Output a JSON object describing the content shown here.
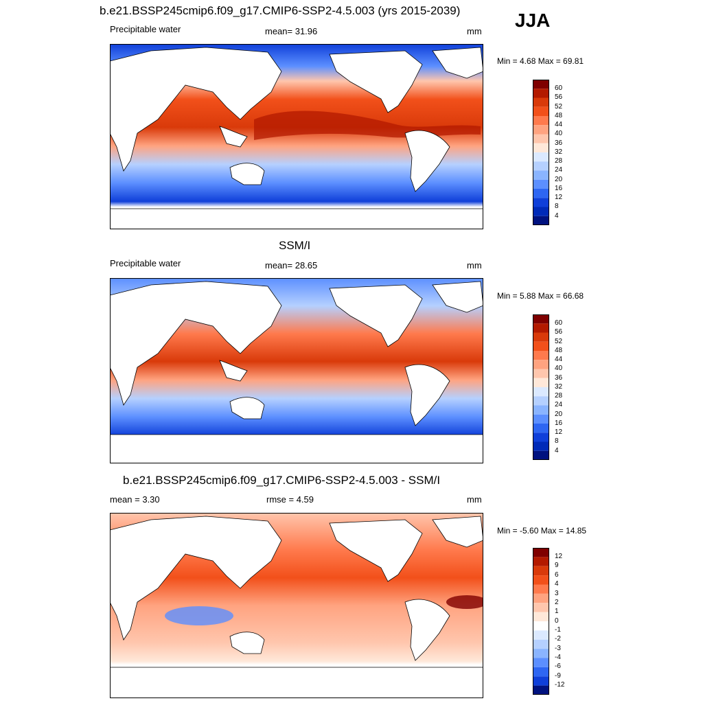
{
  "season": "JJA",
  "units": "mm",
  "panels": [
    {
      "title": "b.e21.BSSP245cmip6.f09_g17.CMIP6-SSP2-4.5.003 (yrs 2015-2039)",
      "left_label": "Precipitable water",
      "center_label": "mean=  31.96",
      "right_label": "mm",
      "minmax": "Min =   4.68 Max =  69.81",
      "levels": [
        60,
        56,
        52,
        48,
        44,
        40,
        36,
        32,
        28,
        24,
        20,
        16,
        12,
        8,
        4
      ]
    },
    {
      "title": "SSM/I",
      "left_label": "Precipitable water",
      "center_label": "mean=  28.65",
      "right_label": "mm",
      "minmax": "Min =   5.88 Max =  66.68",
      "levels": [
        60,
        56,
        52,
        48,
        44,
        40,
        36,
        32,
        28,
        24,
        20,
        16,
        12,
        8,
        4
      ]
    },
    {
      "title": "b.e21.BSSP245cmip6.f09_g17.CMIP6-SSP2-4.5.003 - SSM/I",
      "left_label": "mean =   3.30",
      "center_label": "rmse =   4.59",
      "right_label": "mm",
      "minmax": "Min =  -5.60 Max =  14.85",
      "levels": [
        12,
        9,
        6,
        4,
        3,
        2,
        1,
        0,
        -1,
        -2,
        -3,
        -4,
        -6,
        -9,
        -12
      ]
    }
  ],
  "colors": {
    "abs_scale": [
      "#7f0000",
      "#b31a00",
      "#d93a0a",
      "#f2501a",
      "#ff7a4d",
      "#ffa380",
      "#ffc6ad",
      "#ffe8d9",
      "#dbe9ff",
      "#b5d0ff",
      "#8ab4ff",
      "#5c8fff",
      "#2e66f2",
      "#0f3fd9",
      "#002ab8",
      "#00127f"
    ],
    "diff_scale": [
      "#7f0000",
      "#b31a00",
      "#d93a0a",
      "#f2501a",
      "#ff7a4d",
      "#ffa380",
      "#ffc6ad",
      "#ffe8d9",
      "#ffffff",
      "#dbe9ff",
      "#b5d0ff",
      "#8ab4ff",
      "#5c8fff",
      "#2e66f2",
      "#0f3fd9",
      "#00127f"
    ]
  }
}
